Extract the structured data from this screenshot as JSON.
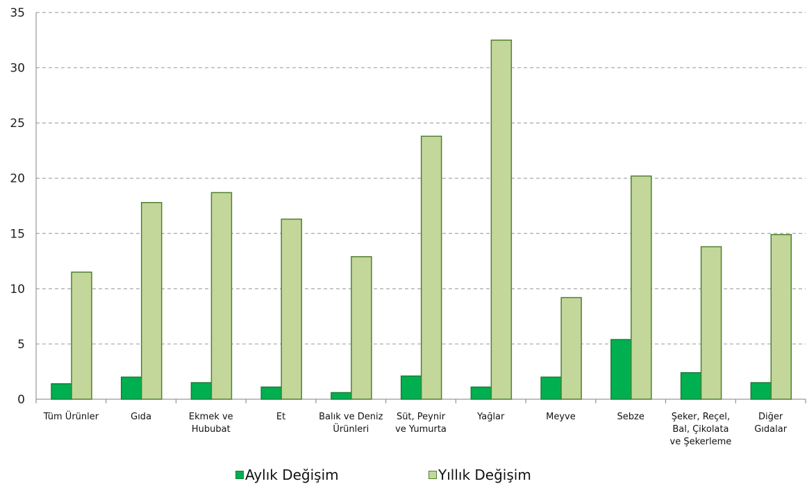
{
  "colors": {
    "monthly_fill": "#00b050",
    "monthly_stroke": "#1f7a3a",
    "yearly_fill": "#c4d79b",
    "yearly_stroke": "#4f7f2f",
    "grid": "#a6a6a6",
    "axis": "#808080"
  },
  "chart_data": {
    "type": "bar",
    "title": "",
    "xlabel": "",
    "ylabel": "",
    "ylim": [
      0,
      35
    ],
    "yticks": [
      0,
      5,
      10,
      15,
      20,
      25,
      30,
      35
    ],
    "grid": true,
    "legend_position": "bottom",
    "categories": [
      [
        "Tüm Ürünler"
      ],
      [
        "Gıda"
      ],
      [
        "Ekmek ve",
        "Hububat"
      ],
      [
        "Et"
      ],
      [
        "Balık ve Deniz",
        "Ürünleri"
      ],
      [
        "Süt, Peynir",
        "ve Yumurta"
      ],
      [
        "Yağlar"
      ],
      [
        "Meyve"
      ],
      [
        "Sebze"
      ],
      [
        "Şeker, Reçel,",
        "Bal, Çikolata",
        "ve Şekerleme"
      ],
      [
        "Diğer",
        "Gıdalar"
      ]
    ],
    "series": [
      {
        "name": "Aylık Değişim",
        "values": [
          1.4,
          2.0,
          1.5,
          1.1,
          0.6,
          2.1,
          1.1,
          2.0,
          5.4,
          2.4,
          1.5
        ]
      },
      {
        "name": "Yıllık Değişim",
        "values": [
          11.5,
          17.8,
          18.7,
          16.3,
          12.9,
          23.8,
          32.5,
          9.2,
          20.2,
          13.8,
          14.9
        ]
      }
    ]
  }
}
